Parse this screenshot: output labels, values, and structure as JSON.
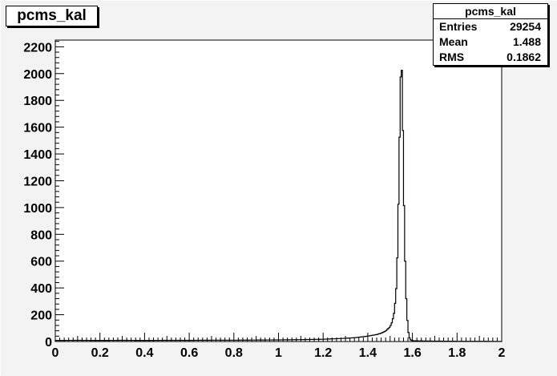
{
  "colors": {
    "background": "#f3f3f3",
    "frame": "#000000",
    "histogram": "#000000",
    "pad": "#ffffff"
  },
  "stats": {
    "title": "pcms_kal",
    "rows": [
      {
        "label": "Entries",
        "value": "29254"
      },
      {
        "label": "Mean",
        "value": "1.488"
      },
      {
        "label": "RMS",
        "value": "0.1862"
      }
    ]
  },
  "chart_data": {
    "type": "histogram",
    "title": "pcms_kal",
    "xlabel": "",
    "ylabel": "",
    "xlim": [
      0,
      2
    ],
    "ylim": [
      0,
      2250
    ],
    "x_tick_labels": [
      "0",
      "0.2",
      "0.4",
      "0.6",
      "0.8",
      "1",
      "1.2",
      "1.4",
      "1.6",
      "1.8",
      "2"
    ],
    "y_tick_labels": [
      "0",
      "200",
      "400",
      "600",
      "800",
      "1000",
      "1200",
      "1400",
      "1600",
      "1800",
      "2000",
      "2200"
    ],
    "grid": false,
    "legend": "stats box top-right",
    "bins": 400,
    "series": [
      {
        "points": [
          [
            0.0,
            8
          ],
          [
            0.1,
            9
          ],
          [
            0.2,
            8
          ],
          [
            0.3,
            9
          ],
          [
            0.4,
            8
          ],
          [
            0.5,
            9
          ],
          [
            0.6,
            9
          ],
          [
            0.7,
            10
          ],
          [
            0.8,
            10
          ],
          [
            0.9,
            11
          ],
          [
            1.0,
            12
          ],
          [
            1.1,
            14
          ],
          [
            1.2,
            17
          ],
          [
            1.3,
            24
          ],
          [
            1.35,
            30
          ],
          [
            1.4,
            40
          ],
          [
            1.44,
            52
          ],
          [
            1.46,
            62
          ],
          [
            1.48,
            78
          ],
          [
            1.5,
            110
          ],
          [
            1.51,
            150
          ],
          [
            1.52,
            230
          ],
          [
            1.53,
            450
          ],
          [
            1.535,
            800
          ],
          [
            1.54,
            1250
          ],
          [
            1.545,
            1800
          ],
          [
            1.55,
            2150
          ],
          [
            1.555,
            1900
          ],
          [
            1.56,
            1250
          ],
          [
            1.565,
            780
          ],
          [
            1.57,
            420
          ],
          [
            1.575,
            220
          ],
          [
            1.58,
            95
          ],
          [
            1.585,
            40
          ],
          [
            1.59,
            15
          ],
          [
            1.6,
            6
          ],
          [
            1.65,
            4
          ],
          [
            1.8,
            2
          ],
          [
            2.0,
            1
          ]
        ]
      }
    ]
  }
}
